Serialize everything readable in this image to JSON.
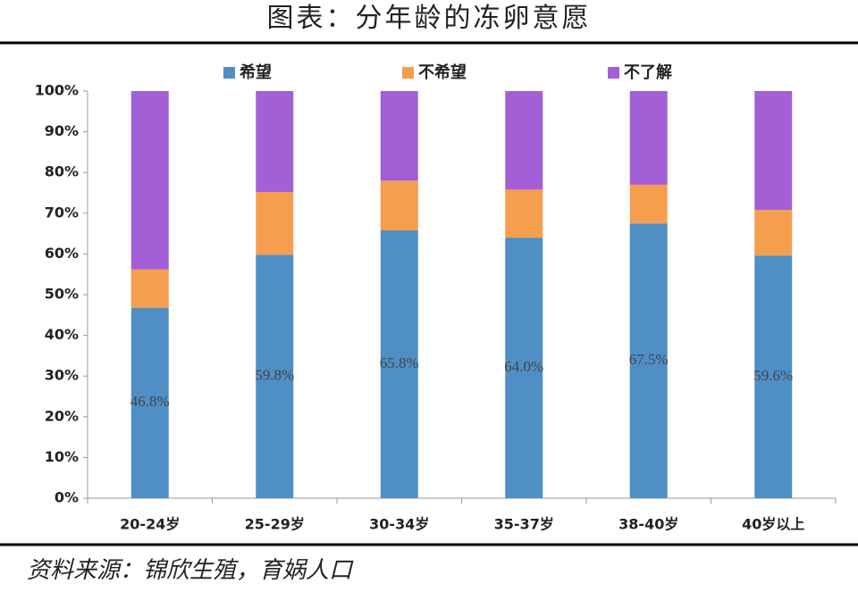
{
  "chart_data": {
    "type": "stacked_bar",
    "title": "图表：分年龄的冻卵意愿",
    "source": "资料来源：锦欣生殖，育娲人口",
    "categories": [
      "20-24岁",
      "25-29岁",
      "30-34岁",
      "35-37岁",
      "38-40岁",
      "40岁以上"
    ],
    "series": [
      {
        "name": "希望",
        "color": "#4f8fc6",
        "values": [
          46.8,
          59.8,
          65.8,
          64.0,
          67.5,
          59.6
        ],
        "value_labels": [
          "46.8%",
          "59.8%",
          "65.8%",
          "64.0%",
          "67.5%",
          "59.6%"
        ]
      },
      {
        "name": "不希望",
        "color": "#f59e4e",
        "values": [
          9.4,
          15.4,
          12.2,
          11.8,
          9.5,
          11.2
        ]
      },
      {
        "name": "不了解",
        "color": "#a35fd6",
        "values": [
          43.8,
          24.8,
          22.0,
          24.2,
          23.0,
          29.2
        ]
      }
    ],
    "ylim": [
      0,
      100
    ],
    "yticks": [
      {
        "value": 0,
        "label": "0%"
      },
      {
        "value": 10,
        "label": "10%"
      },
      {
        "value": 20,
        "label": "20%"
      },
      {
        "value": 30,
        "label": "30%"
      },
      {
        "value": 40,
        "label": "40%"
      },
      {
        "value": 50,
        "label": "50%"
      },
      {
        "value": 60,
        "label": "60%"
      },
      {
        "value": 70,
        "label": "70%"
      },
      {
        "value": 80,
        "label": "80%"
      },
      {
        "value": 90,
        "label": "90%"
      },
      {
        "value": 100,
        "label": "100%"
      }
    ]
  }
}
